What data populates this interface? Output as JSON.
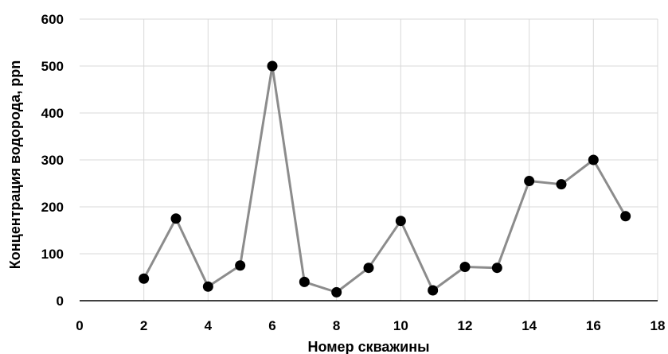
{
  "chart_data": {
    "type": "line",
    "title": "",
    "xlabel": "Номер скважины",
    "ylabel": "Концентрация водорода, ppn",
    "xlim": [
      0,
      18
    ],
    "ylim": [
      0,
      600
    ],
    "xticks": [
      0,
      2,
      4,
      6,
      8,
      10,
      12,
      14,
      16,
      18
    ],
    "yticks": [
      0,
      100,
      200,
      300,
      400,
      500,
      600
    ],
    "grid": true,
    "legend": "none",
    "series": [
      {
        "x": [
          2,
          3,
          4,
          5,
          6,
          7,
          8,
          9,
          10,
          11,
          12,
          13,
          14,
          15,
          16,
          17
        ],
        "y": [
          47,
          175,
          30,
          75,
          500,
          40,
          18,
          70,
          170,
          22,
          72,
          70,
          255,
          248,
          300,
          180
        ],
        "line_color": "#8c8c8c",
        "marker_color": "#000000"
      }
    ]
  }
}
